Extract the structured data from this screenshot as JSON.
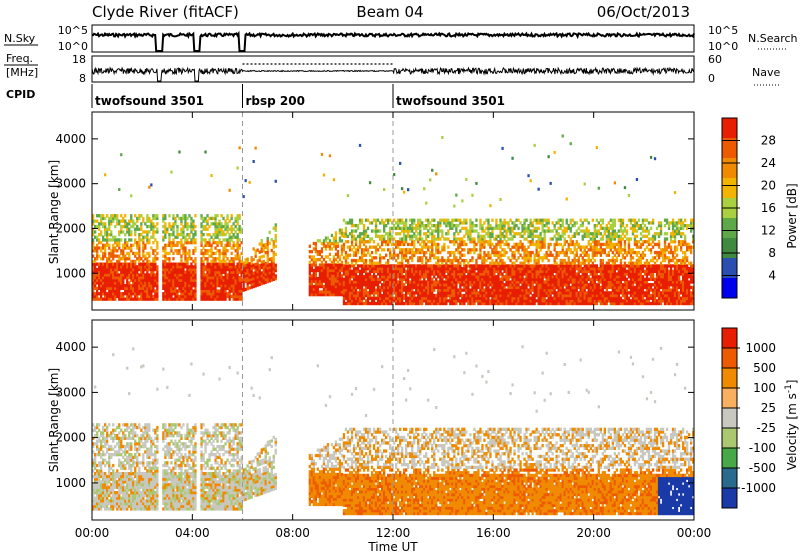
{
  "header": {
    "station": "Clyde River (fitACF)",
    "beam": "Beam 04",
    "date": "06/Oct/2013"
  },
  "top_panels": {
    "nsky_label": "N.Sky",
    "nsky_ticks": [
      "10^5",
      "10^0"
    ],
    "nsky_right_ticks": [
      "10^5",
      "10^0"
    ],
    "nsearch_label": "N.Search",
    "freq_label_1": "Freq.",
    "freq_label_2": "[MHz]",
    "freq_ticks": [
      "18",
      "8"
    ],
    "nave_ticks": [
      "60",
      "0"
    ],
    "nave_label": "Nave",
    "cpid_label": "CPID",
    "cpid_segments": [
      {
        "name": "twofsound 3501",
        "start_h": 0,
        "end_h": 6
      },
      {
        "name": "rbsp 200",
        "start_h": 6,
        "end_h": 12
      },
      {
        "name": "twofsound 3501",
        "start_h": 12,
        "end_h": 24
      }
    ]
  },
  "x_axis": {
    "label": "Time UT",
    "ticks": [
      "00:00",
      "04:00",
      "08:00",
      "12:00",
      "16:00",
      "20:00",
      "00:00"
    ]
  },
  "colors": {
    "power": [
      "#0000ee",
      "#2a4fb0",
      "#3f8a3f",
      "#5fa84a",
      "#a8d040",
      "#f2b400",
      "#f08a00",
      "#ee5a00",
      "#e81e00"
    ],
    "velocity": [
      "#e81e00",
      "#ee5a00",
      "#f08a00",
      "#f8b060",
      "#c8c8c0",
      "#aac870",
      "#46a846",
      "#2a6a8c",
      "#1a3aa8"
    ]
  },
  "chart_data": [
    {
      "type": "heatmap",
      "title": "",
      "xlabel": "",
      "ylabel": "Slant Range [km]",
      "xlim_hours": [
        0,
        24
      ],
      "ylim": [
        180,
        4600
      ],
      "yticks": [
        "4000",
        "3000",
        "2000",
        "1000"
      ],
      "colorbar_label": "Power [dB]",
      "colorbar_ticks": [
        "28",
        "24",
        "20",
        "16",
        "12",
        "8",
        "4"
      ],
      "colorbar_range": [
        0,
        32
      ]
    },
    {
      "type": "heatmap",
      "title": "",
      "xlabel": "Time UT",
      "ylabel": "Slant Range [km]",
      "xlim_hours": [
        0,
        24
      ],
      "ylim": [
        180,
        4600
      ],
      "yticks": [
        "4000",
        "3000",
        "2000",
        "1000"
      ],
      "colorbar_label": "Velocity [m s^-1]",
      "colorbar_ticks": [
        "1000",
        "500",
        "100",
        "25",
        "-25",
        "-100",
        "-500",
        "-1000"
      ]
    }
  ]
}
